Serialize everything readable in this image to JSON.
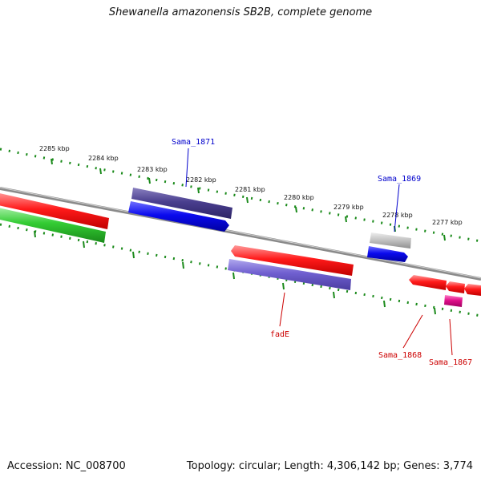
{
  "title": "Shewanella amazonensis SB2B, complete genome",
  "footer": {
    "accession": "Accession: NC_008700",
    "summary": "Topology: circular; Length: 4,306,142 bp; Genes: 3,774"
  },
  "scale_labels": [
    "2285 kbp",
    "2284 kbp",
    "2283 kbp",
    "2282 kbp",
    "2281 kbp",
    "2280 kbp",
    "2279 kbp",
    "2278 kbp",
    "2277 kbp"
  ],
  "gene_labels": {
    "sama_1871": "Sama_1871",
    "sama_1869": "Sama_1869",
    "fade": "fadE",
    "sama_1868": "Sama_1868",
    "sama_1867": "Sama_1867"
  },
  "colors": {
    "backbone": "#8a8a8a",
    "scale_ticks": "#1a8a1a",
    "forward_label": "#0000cc",
    "reverse_label": "#cc0000",
    "red_gene": "#ff1a1a",
    "green_gene": "#33cc33",
    "dark_purple_gene": "#4a3f8f",
    "blue_gene": "#0a0aee",
    "light_purple_gene": "#7060d0",
    "gray_gene": "#c0c0c0",
    "magenta_gene": "#e0108a"
  }
}
